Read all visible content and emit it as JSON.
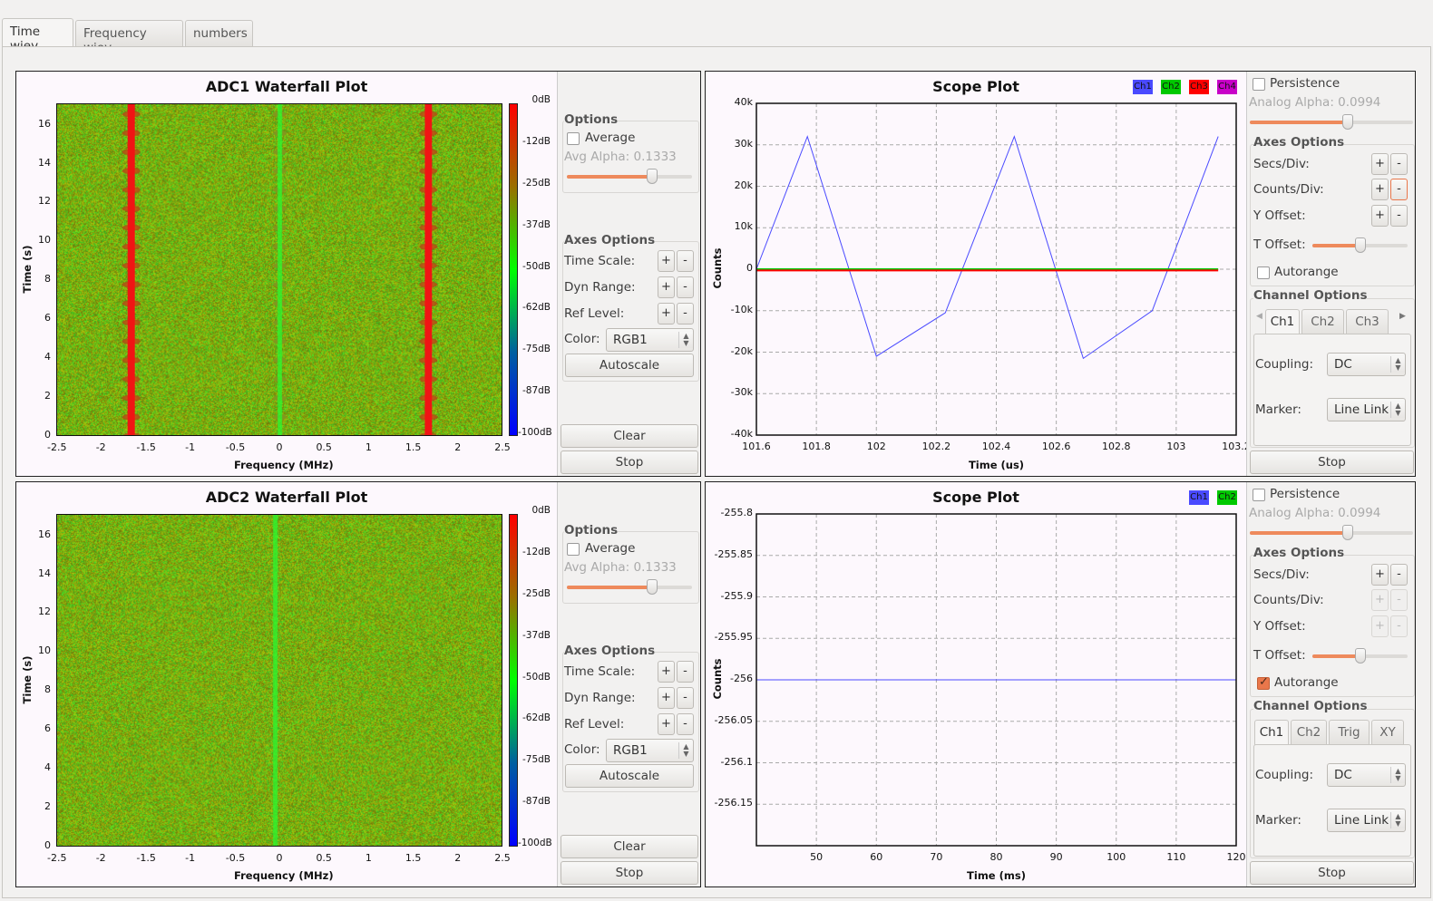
{
  "tabs": [
    {
      "label": "Time wiev",
      "active": true
    },
    {
      "label": "Frequency wiev",
      "active": false
    },
    {
      "label": "numbers",
      "active": false
    }
  ],
  "waterfall_panels": [
    {
      "options_title": "Options",
      "average_label": "Average",
      "average_checked": false,
      "avg_alpha_label": "Avg Alpha: 0.1333",
      "avg_alpha_slider": 0.68,
      "axes_title": "Axes Options",
      "time_scale_label": "Time Scale:",
      "dyn_range_label": "Dyn Range:",
      "ref_level_label": "Ref Level:",
      "plus": "+",
      "minus": "-",
      "color_label": "Color:",
      "color_value": "RGB1",
      "autoscale_label": "Autoscale",
      "clear_label": "Clear",
      "stop_label": "Stop"
    },
    {
      "options_title": "Options",
      "average_label": "Average",
      "average_checked": false,
      "avg_alpha_label": "Avg Alpha: 0.1333",
      "avg_alpha_slider": 0.68,
      "axes_title": "Axes Options",
      "time_scale_label": "Time Scale:",
      "dyn_range_label": "Dyn Range:",
      "ref_level_label": "Ref Level:",
      "plus": "+",
      "minus": "-",
      "color_label": "Color:",
      "color_value": "RGB1",
      "autoscale_label": "Autoscale",
      "clear_label": "Clear",
      "stop_label": "Stop"
    }
  ],
  "scope_panels": [
    {
      "persistence_label": "Persistence",
      "persistence_checked": false,
      "analog_alpha_label": "Analog Alpha: 0.0994",
      "analog_alpha_slider": 0.6,
      "axes_title": "Axes Options",
      "secs_div_label": "Secs/Div:",
      "counts_div_label": "Counts/Div:",
      "y_offset_label": "Y Offset:",
      "t_offset_label": "T Offset:",
      "t_offset_slider": 0.5,
      "plus": "+",
      "minus": "-",
      "counts_enabled": true,
      "autorange_label": "Autorange",
      "autorange_checked": false,
      "channel_title": "Channel Options",
      "channel_tabs": [
        "Ch1",
        "Ch2",
        "Ch3"
      ],
      "has_tab_arrows": true,
      "coupling_label": "Coupling:",
      "coupling_value": "DC",
      "marker_label": "Marker:",
      "marker_value": "Line Link",
      "stop_label": "Stop"
    },
    {
      "persistence_label": "Persistence",
      "persistence_checked": false,
      "analog_alpha_label": "Analog Alpha: 0.0994",
      "analog_alpha_slider": 0.6,
      "axes_title": "Axes Options",
      "secs_div_label": "Secs/Div:",
      "counts_div_label": "Counts/Div:",
      "y_offset_label": "Y Offset:",
      "t_offset_label": "T Offset:",
      "t_offset_slider": 0.5,
      "plus": "+",
      "minus": "-",
      "counts_enabled": false,
      "autorange_label": "Autorange",
      "autorange_checked": true,
      "channel_title": "Channel Options",
      "channel_tabs": [
        "Ch1",
        "Ch2",
        "Trig",
        "XY"
      ],
      "has_tab_arrows": false,
      "coupling_label": "Coupling:",
      "coupling_value": "DC",
      "marker_label": "Marker:",
      "marker_value": "Line Link",
      "stop_label": "Stop"
    }
  ],
  "colors": {
    "accent": "#e9774b",
    "ch1": "#4a4aff",
    "ch2": "#00c800",
    "ch3": "#ff0000",
    "ch4": "#c800c8"
  },
  "chart_data": [
    {
      "type": "heatmap",
      "title": "ADC1 Waterfall Plot",
      "xlabel": "Frequency (MHz)",
      "ylabel": "Time (s)",
      "xlim": [
        -2.5,
        2.5
      ],
      "ylim": [
        0,
        17.1
      ],
      "xticks": [
        "-2.5",
        "-2",
        "-1.5",
        "-1",
        "-0.5",
        "0",
        "0.5",
        "1",
        "1.5",
        "2",
        "2.5"
      ],
      "yticks": [
        "0",
        "2",
        "4",
        "6",
        "8",
        "10",
        "12",
        "14",
        "16"
      ],
      "colorbar": [
        "0dB",
        "-12dB",
        "-25dB",
        "-37dB",
        "-50dB",
        "-62dB",
        "-75dB",
        "-87dB",
        "-100dB"
      ],
      "signal_lines_mhz": [
        {
          "freq": -1.67,
          "level_db": 0
        },
        {
          "freq": 0,
          "level_db": -50
        },
        {
          "freq": 1.67,
          "level_db": 0
        }
      ]
    },
    {
      "type": "line",
      "title": "Scope Plot",
      "xlabel": "Time (us)",
      "ylabel": "Counts",
      "xlim": [
        101.6,
        103.2
      ],
      "ylim": [
        -40000,
        40000
      ],
      "grid": true,
      "legend": "top-right",
      "xticks": [
        "101.6",
        "101.8",
        "102",
        "102.2",
        "102.4",
        "102.6",
        "102.8",
        "103",
        "103.2"
      ],
      "yticks": [
        "40k",
        "30k",
        "20k",
        "10k",
        "0",
        "-10k",
        "-20k",
        "-30k",
        "-40k"
      ],
      "series": [
        {
          "name": "Ch1",
          "color": "#4a4aff",
          "x": [
            101.6,
            101.77,
            102.0,
            102.23,
            102.46,
            102.69,
            102.92,
            103.14
          ],
          "y": [
            0,
            32000,
            -21000,
            -10500,
            32000,
            -21500,
            -10000,
            32000
          ]
        },
        {
          "name": "Ch2",
          "color": "#00c800",
          "x": [
            101.6,
            103.14
          ],
          "y": [
            0,
            0
          ]
        },
        {
          "name": "Ch3",
          "color": "#ff0000",
          "x": [
            101.6,
            103.14
          ],
          "y": [
            -300,
            -300
          ]
        },
        {
          "name": "Ch4",
          "color": "#c800c8",
          "x": [],
          "y": []
        }
      ]
    },
    {
      "type": "heatmap",
      "title": "ADC2 Waterfall Plot",
      "xlabel": "Frequency (MHz)",
      "ylabel": "Time (s)",
      "xlim": [
        -2.5,
        2.5
      ],
      "ylim": [
        0,
        17.1
      ],
      "xticks": [
        "-2.5",
        "-2",
        "-1.5",
        "-1",
        "-0.5",
        "0",
        "0.5",
        "1",
        "1.5",
        "2",
        "2.5"
      ],
      "yticks": [
        "0",
        "2",
        "4",
        "6",
        "8",
        "10",
        "12",
        "14",
        "16"
      ],
      "colorbar": [
        "0dB",
        "-12dB",
        "-25dB",
        "-37dB",
        "-50dB",
        "-62dB",
        "-75dB",
        "-87dB",
        "-100dB"
      ],
      "signal_lines_mhz": [
        {
          "freq": -0.05,
          "level_db": -50
        }
      ]
    },
    {
      "type": "line",
      "title": "Scope Plot",
      "xlabel": "Time (ms)",
      "ylabel": "Counts",
      "xlim": [
        40,
        120
      ],
      "ylim": [
        -256.2,
        -255.8
      ],
      "grid": true,
      "legend": "top-right",
      "xticks": [
        "50",
        "60",
        "70",
        "80",
        "90",
        "100",
        "110",
        "120"
      ],
      "yticks": [
        "-255.8",
        "-255.85",
        "-255.9",
        "-255.95",
        "-256",
        "-256.05",
        "-256.1",
        "-256.15"
      ],
      "series": [
        {
          "name": "Ch1",
          "color": "#4a4aff",
          "x": [
            40,
            120
          ],
          "y": [
            -256,
            -256
          ]
        },
        {
          "name": "Ch2",
          "color": "#00c800",
          "x": [],
          "y": []
        }
      ]
    }
  ]
}
